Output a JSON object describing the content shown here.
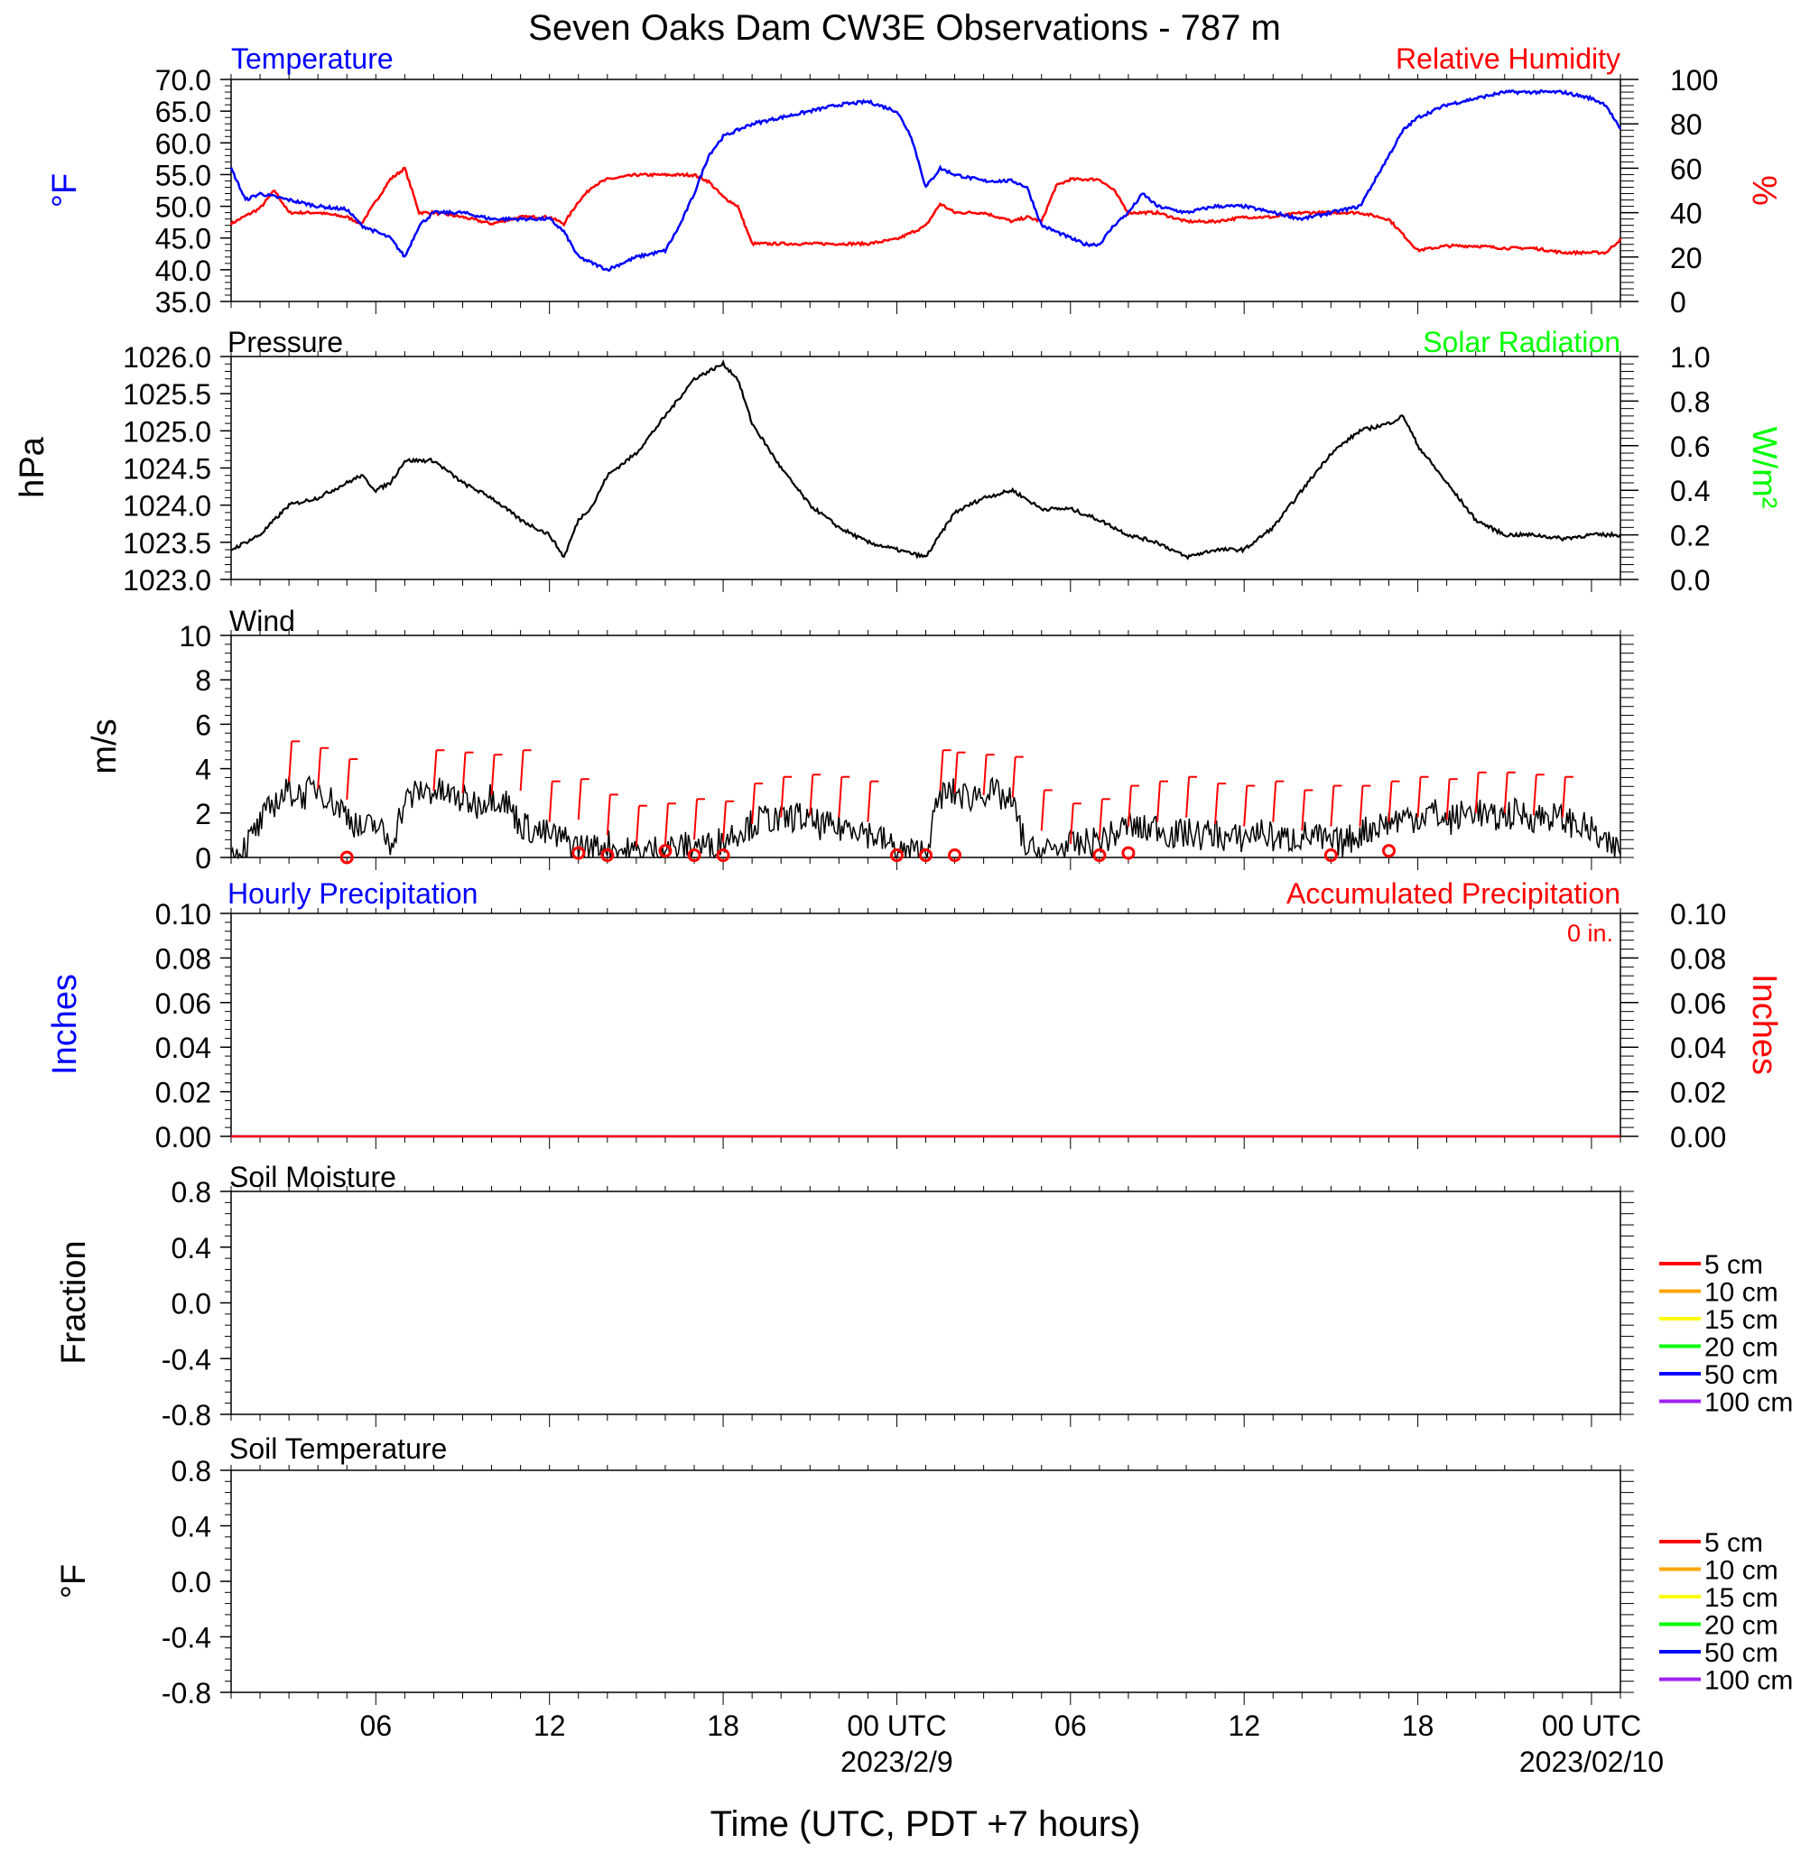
{
  "title": "Seven Oaks Dam CW3E Observations - 787 m",
  "x_axis": {
    "label": "Time (UTC, PDT +7 hours)",
    "range_hours": [
      0,
      48
    ],
    "ticks": [
      {
        "h": 5,
        "label": "06",
        "date": ""
      },
      {
        "h": 11,
        "label": "12",
        "date": ""
      },
      {
        "h": 17,
        "label": "18",
        "date": ""
      },
      {
        "h": 23,
        "label": "00 UTC",
        "date": "2023/2/9"
      },
      {
        "h": 29,
        "label": "06",
        "date": ""
      },
      {
        "h": 35,
        "label": "12",
        "date": ""
      },
      {
        "h": 41,
        "label": "18",
        "date": ""
      },
      {
        "h": 47,
        "label": "00 UTC",
        "date": "2023/02/10"
      }
    ]
  },
  "colors": {
    "temperature": "#0000ff",
    "humidity": "#ff0000",
    "pressure": "#000000",
    "solar": "#00ff00",
    "wind": "#000000",
    "barb": "#ff0000",
    "precip_hourly": "#0000ff",
    "precip_accum": "#ff0000"
  },
  "panels": {
    "temp_rh": {
      "left_title": "Temperature",
      "right_title": "Relative Humidity",
      "left_unit": "°F",
      "right_unit": "%",
      "left_ticks": [
        "70.0",
        "65.0",
        "60.0",
        "55.0",
        "50.0",
        "45.0",
        "40.0",
        "35.0"
      ],
      "right_ticks": [
        "100",
        "80",
        "60",
        "40",
        "20",
        "0"
      ],
      "left_range": [
        35,
        70
      ],
      "right_range": [
        0,
        100
      ]
    },
    "pressure": {
      "left_title": "Pressure",
      "right_title": "Solar Radiation",
      "left_unit": "hPa",
      "right_unit": "W/m²",
      "left_ticks": [
        "1026.0",
        "1025.5",
        "1025.0",
        "1024.5",
        "1024.0",
        "1023.5",
        "1023.0"
      ],
      "right_ticks": [
        "1.0",
        "0.8",
        "0.6",
        "0.4",
        "0.2",
        "0.0"
      ],
      "left_range": [
        1023,
        1026
      ],
      "right_range": [
        0,
        1
      ]
    },
    "wind": {
      "left_title": "Wind",
      "left_unit": "m/s",
      "left_ticks": [
        "10",
        "8",
        "6",
        "4",
        "2",
        "0"
      ],
      "left_range": [
        0,
        10
      ]
    },
    "precip": {
      "left_title": "Hourly Precipitation",
      "right_title": "Accumulated Precipitation",
      "accum_text": "0 in.",
      "left_unit": "Inches",
      "right_unit": "Inches",
      "left_ticks": [
        "0.10",
        "0.08",
        "0.06",
        "0.04",
        "0.02",
        "0.00"
      ],
      "right_ticks": [
        "0.10",
        "0.08",
        "0.06",
        "0.04",
        "0.02",
        "0.00"
      ],
      "left_range": [
        0,
        0.1
      ]
    },
    "soil_moisture": {
      "left_title": "Soil Moisture",
      "left_unit": "Fraction",
      "left_ticks": [
        "0.8",
        "0.4",
        "0.0",
        "-0.4",
        "-0.8"
      ],
      "left_range": [
        -1,
        1
      ],
      "legend": [
        {
          "label": "5 cm",
          "color": "#ff0000"
        },
        {
          "label": "10 cm",
          "color": "#ffa500"
        },
        {
          "label": "15 cm",
          "color": "#ffff00"
        },
        {
          "label": "20 cm",
          "color": "#00ff00"
        },
        {
          "label": "50 cm",
          "color": "#0000ff"
        },
        {
          "label": "100 cm",
          "color": "#a020f0"
        }
      ]
    },
    "soil_temp": {
      "left_title": "Soil Temperature",
      "left_unit": "°F",
      "left_ticks": [
        "0.8",
        "0.4",
        "0.0",
        "-0.4",
        "-0.8"
      ],
      "left_range": [
        -1,
        1
      ],
      "legend": [
        {
          "label": "5 cm",
          "color": "#ff0000"
        },
        {
          "label": "10 cm",
          "color": "#ffa500"
        },
        {
          "label": "15 cm",
          "color": "#ffff00"
        },
        {
          "label": "20 cm",
          "color": "#00ff00"
        },
        {
          "label": "50 cm",
          "color": "#0000ff"
        },
        {
          "label": "100 cm",
          "color": "#a020f0"
        }
      ]
    }
  },
  "chart_data": [
    {
      "type": "line",
      "panel": "temp_rh",
      "x_unit": "hours since start of plot (UTC)",
      "series": [
        {
          "name": "Temperature",
          "axis": "left",
          "units": "°F",
          "x": [
            0,
            0.5,
            1,
            1.5,
            2,
            3,
            4,
            4.5,
            5,
            5.5,
            6,
            6.5,
            7,
            8,
            9,
            10,
            10.5,
            11,
            11.5,
            12,
            12.5,
            13,
            13.5,
            14,
            15,
            15.5,
            16,
            16.5,
            17,
            17.5,
            18,
            19,
            20,
            21,
            22,
            23,
            23.5,
            24,
            24.5,
            25,
            26,
            27,
            27.5,
            28,
            28.5,
            29,
            29.5,
            30,
            30.5,
            31,
            31.5,
            32,
            33,
            34,
            35,
            36,
            37,
            38,
            39,
            39.5,
            40,
            40.5,
            41,
            42,
            43,
            44,
            45,
            46,
            47,
            47.5,
            48
          ],
          "y": [
            56,
            51,
            52,
            51.5,
            51,
            50,
            49.5,
            47,
            46,
            45,
            42,
            47,
            49,
            49,
            48,
            48,
            48,
            48,
            46,
            42,
            41,
            40,
            41,
            42,
            43,
            47,
            52,
            58,
            61,
            62,
            63,
            64,
            65,
            66,
            66.5,
            65,
            61,
            53,
            56,
            55,
            54,
            54,
            53,
            47,
            46,
            45,
            44,
            44,
            47,
            49,
            52,
            50,
            49,
            50,
            50,
            49,
            48,
            49,
            50,
            54,
            58,
            62,
            64,
            66,
            67,
            68,
            68,
            68,
            67,
            66,
            62
          ]
        },
        {
          "name": "Relative Humidity",
          "axis": "right",
          "units": "%",
          "x": [
            0,
            1,
            1.5,
            2,
            3,
            4,
            4.5,
            5,
            5.5,
            6,
            6.5,
            7,
            8,
            9,
            10,
            11,
            11.5,
            12,
            12.5,
            13,
            14,
            15,
            16,
            16.5,
            17,
            17.5,
            18,
            19,
            20,
            21,
            22,
            23,
            24,
            24.5,
            25,
            26,
            27,
            27.5,
            28,
            28.5,
            29,
            29.5,
            30,
            30.5,
            31,
            32,
            33,
            34,
            35,
            36,
            37,
            38,
            38.5,
            39,
            40,
            41,
            42,
            43,
            44,
            45,
            46,
            47,
            47.5,
            48
          ],
          "y": [
            35,
            42,
            50,
            40,
            40,
            38,
            35,
            45,
            55,
            60,
            40,
            40,
            38,
            35,
            38,
            38,
            35,
            45,
            52,
            55,
            57,
            57,
            57,
            54,
            47,
            43,
            26,
            26,
            26,
            26,
            26,
            28,
            34,
            44,
            40,
            40,
            36,
            38,
            36,
            52,
            55,
            55,
            55,
            50,
            40,
            40,
            36,
            36,
            38,
            38,
            40,
            40,
            40,
            40,
            37,
            23,
            25,
            25,
            24,
            24,
            22,
            22,
            22,
            28
          ]
        }
      ]
    },
    {
      "type": "line",
      "panel": "pressure",
      "x_unit": "hours since start of plot (UTC)",
      "series": [
        {
          "name": "Pressure",
          "axis": "left",
          "units": "hPa",
          "x": [
            0,
            1,
            2,
            3,
            4,
            4.5,
            5,
            5.5,
            6,
            7,
            8,
            9,
            10,
            11,
            11.5,
            12,
            12.5,
            13,
            14,
            15,
            16,
            16.5,
            17,
            17.5,
            18,
            19,
            20,
            21,
            22,
            23,
            24,
            24.5,
            25,
            26,
            27,
            28,
            29,
            30,
            31,
            32,
            33,
            34,
            35,
            36,
            37,
            38,
            39,
            40,
            40.5,
            41,
            42,
            43,
            44,
            45,
            46,
            47,
            48
          ],
          "y": [
            1023.4,
            1023.6,
            1024,
            1024.1,
            1024.3,
            1024.4,
            1024.2,
            1024.3,
            1024.6,
            1024.6,
            1024.3,
            1024.1,
            1023.8,
            1023.6,
            1023.3,
            1023.8,
            1024.0,
            1024.4,
            1024.7,
            1025.2,
            1025.7,
            1025.8,
            1025.9,
            1025.7,
            1025.1,
            1024.5,
            1024,
            1023.7,
            1023.5,
            1023.4,
            1023.3,
            1023.6,
            1023.9,
            1024.1,
            1024.2,
            1023.95,
            1023.95,
            1023.8,
            1023.6,
            1023.5,
            1023.3,
            1023.4,
            1023.4,
            1023.7,
            1024.2,
            1024.7,
            1025,
            1025.1,
            1025.2,
            1024.8,
            1024.3,
            1023.8,
            1023.6,
            1023.6,
            1023.55,
            1023.6,
            1023.6
          ]
        },
        {
          "name": "Solar Radiation",
          "axis": "right",
          "units": "W/m²",
          "x": [],
          "y": []
        }
      ]
    },
    {
      "type": "line",
      "panel": "wind",
      "x_unit": "hours since start of plot (UTC)",
      "series": [
        {
          "name": "Wind",
          "axis": "left",
          "units": "m/s",
          "x": [
            0,
            0.5,
            1,
            1.5,
            2,
            2.5,
            3,
            3.5,
            4,
            4.5,
            5,
            5.5,
            6,
            6.5,
            7,
            7.5,
            8,
            8.5,
            9,
            9.5,
            10,
            10.5,
            11,
            11.5,
            12,
            12.5,
            13,
            13.5,
            14,
            14.5,
            15,
            15.5,
            16,
            16.5,
            17,
            17.5,
            18,
            18.5,
            19,
            19.5,
            20,
            20.5,
            21,
            21.5,
            22,
            22.5,
            23,
            23.5,
            24,
            24.5,
            25,
            25.5,
            26,
            26.5,
            27,
            27.5,
            28,
            28.5,
            29,
            29.5,
            30,
            30.5,
            31,
            31.5,
            32,
            32.5,
            33,
            33.5,
            34,
            34.5,
            35,
            35.5,
            36,
            36.5,
            37,
            37.5,
            38,
            38.5,
            39,
            39.5,
            40,
            40.5,
            41,
            41.5,
            42,
            42.5,
            43,
            43.5,
            44,
            44.5,
            45,
            45.5,
            46,
            46.5,
            47,
            47.5,
            48
          ],
          "y": [
            0,
            0.5,
            1.5,
            2.5,
            3,
            2.8,
            3.2,
            2.5,
            2,
            1.2,
            1.5,
            0.6,
            2.5,
            3,
            3,
            2.8,
            2.6,
            2.4,
            2.8,
            2.5,
            1.5,
            1.2,
            1,
            0.8,
            0.5,
            0.4,
            0.6,
            0.3,
            0.2,
            0.3,
            0.5,
            0.4,
            0.6,
            0.5,
            0.8,
            1.2,
            1.5,
            1.8,
            1.6,
            1.9,
            1.6,
            1.4,
            1.3,
            1.5,
            1.1,
            0.8,
            0.3,
            0.2,
            0.3,
            2.8,
            2.9,
            2.7,
            3,
            2.8,
            2.4,
            0.3,
            0.2,
            0.4,
            0.5,
            0.6,
            0.8,
            1.0,
            1.5,
            1.2,
            1.4,
            1.0,
            1.1,
            1.0,
            1.1,
            0.8,
            0.9,
            1.2,
            0.9,
            0.8,
            1.0,
            0.9,
            0.6,
            0.7,
            1.1,
            1.4,
            1.6,
            1.8,
            1.8,
            2.1,
            1.6,
            1.9,
            2.2,
            1.7,
            1.9,
            2.0,
            1.8,
            1.9,
            1.7,
            1.5,
            1.2,
            0.5,
            0.3
          ]
        },
        {
          "name": "Wind barbs",
          "x": [
            2,
            3,
            4,
            7,
            8,
            9,
            10,
            11,
            12,
            13,
            14,
            15,
            16,
            17,
            18,
            19,
            20,
            21,
            22,
            24.5,
            25,
            26,
            27,
            28,
            29,
            30,
            31,
            32,
            33,
            34,
            35,
            36,
            37,
            38,
            39,
            40,
            41,
            42,
            43,
            44,
            45,
            46
          ],
          "y": [
            3.4,
            3.1,
            2.6,
            3.0,
            2.9,
            2.8,
            3.0,
            1.6,
            1.7,
            1.0,
            0.5,
            0.6,
            0.8,
            0.7,
            1.5,
            1.8,
            1.9,
            1.8,
            1.6,
            3.0,
            2.9,
            2.8,
            2.7,
            1.2,
            0.6,
            0.8,
            1.4,
            1.6,
            1.8,
            1.5,
            1.4,
            1.6,
            1.2,
            1.4,
            1.4,
            1.6,
            1.8,
            1.7,
            2.0,
            2.0,
            1.9,
            1.8
          ]
        },
        {
          "name": "Calm",
          "x": [
            4,
            12,
            13,
            15,
            16,
            17,
            23,
            24,
            25,
            30,
            31,
            38,
            40
          ],
          "y": [
            0,
            0.2,
            0.1,
            0.3,
            0.1,
            0.1,
            0.1,
            0.1,
            0.1,
            0.1,
            0.2,
            0.1,
            0.3
          ]
        }
      ]
    },
    {
      "type": "line",
      "panel": "precip",
      "series": [
        {
          "name": "Hourly Precipitation",
          "axis": "left",
          "units": "Inches",
          "x": [
            0,
            48
          ],
          "y": [
            0,
            0
          ]
        },
        {
          "name": "Accumulated Precipitation",
          "axis": "right",
          "units": "Inches",
          "x": [
            0,
            48
          ],
          "y": [
            0,
            0
          ]
        }
      ]
    },
    {
      "type": "line",
      "panel": "soil_moisture",
      "series": []
    },
    {
      "type": "line",
      "panel": "soil_temp",
      "series": []
    }
  ]
}
